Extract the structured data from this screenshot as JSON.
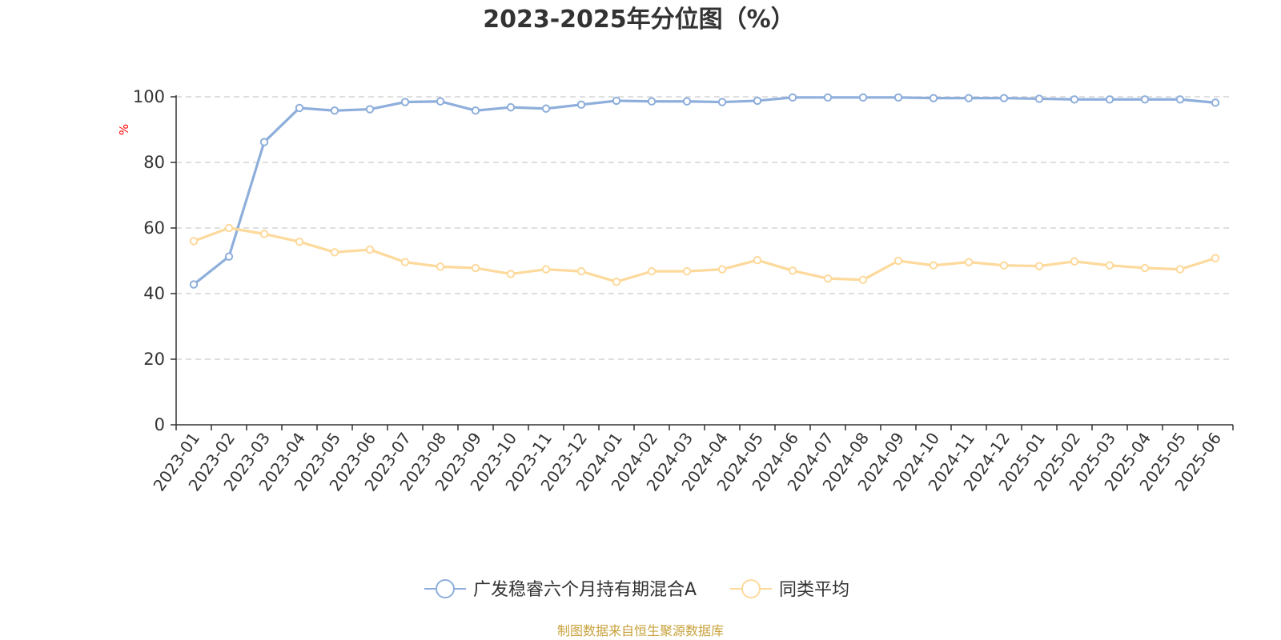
{
  "chart_data": {
    "type": "line",
    "title": "2023-2025年分位图（%）",
    "ylabel": "%",
    "xlabel": "",
    "ylim": [
      0,
      100
    ],
    "yticks": [
      0,
      20,
      40,
      60,
      80,
      100
    ],
    "grid": "horizontal-dashed",
    "legend": "bottom-center",
    "categories": [
      "2023-01",
      "2023-02",
      "2023-03",
      "2023-04",
      "2023-05",
      "2023-06",
      "2023-07",
      "2023-08",
      "2023-09",
      "2023-10",
      "2023-11",
      "2023-12",
      "2024-01",
      "2024-02",
      "2024-03",
      "2024-04",
      "2024-05",
      "2024-06",
      "2024-07",
      "2024-08",
      "2024-09",
      "2024-10",
      "2024-11",
      "2024-12",
      "2025-01",
      "2025-02",
      "2025-03",
      "2025-04",
      "2025-05",
      "2025-06"
    ],
    "series": [
      {
        "name": "广发稳睿六个月持有期混合A",
        "color": "#8eaedb",
        "values": [
          42.8,
          51.3,
          86.2,
          96.6,
          95.8,
          96.2,
          98.4,
          98.6,
          95.8,
          96.8,
          96.4,
          97.6,
          98.8,
          98.6,
          98.6,
          98.4,
          98.8,
          99.8,
          99.8,
          99.8,
          99.8,
          99.6,
          99.6,
          99.6,
          99.4,
          99.2,
          99.2,
          99.2,
          99.2,
          98.2
        ]
      },
      {
        "name": "同类平均",
        "color": "#fdd99b",
        "values": [
          56.0,
          60.0,
          58.2,
          55.8,
          52.6,
          53.4,
          49.6,
          48.2,
          47.8,
          46.0,
          47.4,
          46.8,
          43.6,
          46.8,
          46.8,
          47.4,
          50.2,
          47.0,
          44.6,
          44.2,
          50.0,
          48.6,
          49.6,
          48.6,
          48.4,
          49.8,
          48.6,
          47.8,
          47.4,
          50.8
        ]
      }
    ]
  },
  "source": "制图数据来自恒生聚源数据库"
}
